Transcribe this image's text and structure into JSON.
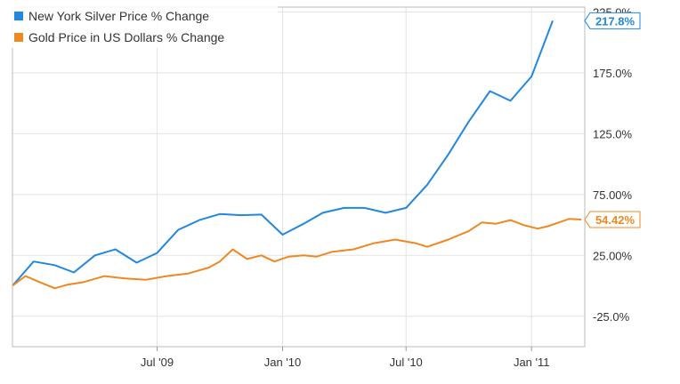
{
  "chart_data": {
    "type": "line",
    "title": "",
    "xlabel": "",
    "ylabel": "",
    "x_tick_labels": [
      "Jul '09",
      "Jan '10",
      "Jul '10",
      "Jan '11"
    ],
    "y_tick_labels": [
      "225.0%",
      "175.0%",
      "125.0%",
      "75.00%",
      "25.00%",
      "-25.0%"
    ],
    "y_ticks": [
      225,
      175,
      125,
      75,
      25,
      -25
    ],
    "ylim": [
      -50,
      229
    ],
    "xlim": [
      "2008-12-01",
      "2011-03-20"
    ],
    "grid": true,
    "legend_position": "top-left",
    "series": [
      {
        "name": "New York Silver Price % Change",
        "color": "#2288dd",
        "end_label": "217.8%",
        "points": [
          [
            "2008-12-01",
            0.0
          ],
          [
            "2009-01-01",
            20.0
          ],
          [
            "2009-02-01",
            17.0
          ],
          [
            "2009-03-01",
            11.0
          ],
          [
            "2009-04-01",
            25.0
          ],
          [
            "2009-05-01",
            30.0
          ],
          [
            "2009-06-01",
            19.0
          ],
          [
            "2009-07-01",
            27.0
          ],
          [
            "2009-08-01",
            46.0
          ],
          [
            "2009-09-01",
            54.0
          ],
          [
            "2009-10-01",
            59.0
          ],
          [
            "2009-11-01",
            58.0
          ],
          [
            "2009-12-01",
            58.5
          ],
          [
            "2010-01-01",
            42.0
          ],
          [
            "2010-02-01",
            51.0
          ],
          [
            "2010-03-01",
            60.0
          ],
          [
            "2010-04-01",
            64.0
          ],
          [
            "2010-05-01",
            64.0
          ],
          [
            "2010-06-01",
            60.0
          ],
          [
            "2010-07-01",
            64.0
          ],
          [
            "2010-08-01",
            83.0
          ],
          [
            "2010-09-01",
            108.0
          ],
          [
            "2010-10-01",
            135.0
          ],
          [
            "2010-11-01",
            160.0
          ],
          [
            "2010-12-01",
            152.0
          ],
          [
            "2011-01-01",
            172.0
          ],
          [
            "2011-02-01",
            217.8
          ]
        ]
      },
      {
        "name": "Gold Price in US Dollars % Change",
        "color": "#ee8822",
        "end_label": "54.42%",
        "points": [
          [
            "2008-12-01",
            0.0
          ],
          [
            "2008-12-20",
            8.0
          ],
          [
            "2009-01-10",
            3.0
          ],
          [
            "2009-02-01",
            -2.0
          ],
          [
            "2009-02-20",
            1.0
          ],
          [
            "2009-03-15",
            3.0
          ],
          [
            "2009-04-15",
            8.0
          ],
          [
            "2009-05-15",
            6.0
          ],
          [
            "2009-06-15",
            5.0
          ],
          [
            "2009-07-15",
            8.0
          ],
          [
            "2009-08-15",
            10.0
          ],
          [
            "2009-09-15",
            15.0
          ],
          [
            "2009-10-01",
            20.0
          ],
          [
            "2009-10-20",
            30.0
          ],
          [
            "2009-11-10",
            22.0
          ],
          [
            "2009-12-01",
            25.0
          ],
          [
            "2009-12-20",
            20.0
          ],
          [
            "2010-01-10",
            24.0
          ],
          [
            "2010-02-01",
            25.0
          ],
          [
            "2010-02-20",
            24.0
          ],
          [
            "2010-03-15",
            28.0
          ],
          [
            "2010-04-15",
            30.0
          ],
          [
            "2010-05-15",
            35.0
          ],
          [
            "2010-06-15",
            38.0
          ],
          [
            "2010-07-15",
            35.0
          ],
          [
            "2010-08-01",
            32.0
          ],
          [
            "2010-09-01",
            38.0
          ],
          [
            "2010-10-01",
            45.0
          ],
          [
            "2010-10-20",
            52.0
          ],
          [
            "2010-11-10",
            51.0
          ],
          [
            "2010-12-01",
            54.0
          ],
          [
            "2010-12-20",
            50.0
          ],
          [
            "2011-01-10",
            47.0
          ],
          [
            "2011-01-25",
            49.0
          ],
          [
            "2011-02-10",
            52.0
          ],
          [
            "2011-02-25",
            55.0
          ],
          [
            "2011-03-15",
            54.42
          ]
        ]
      }
    ]
  }
}
